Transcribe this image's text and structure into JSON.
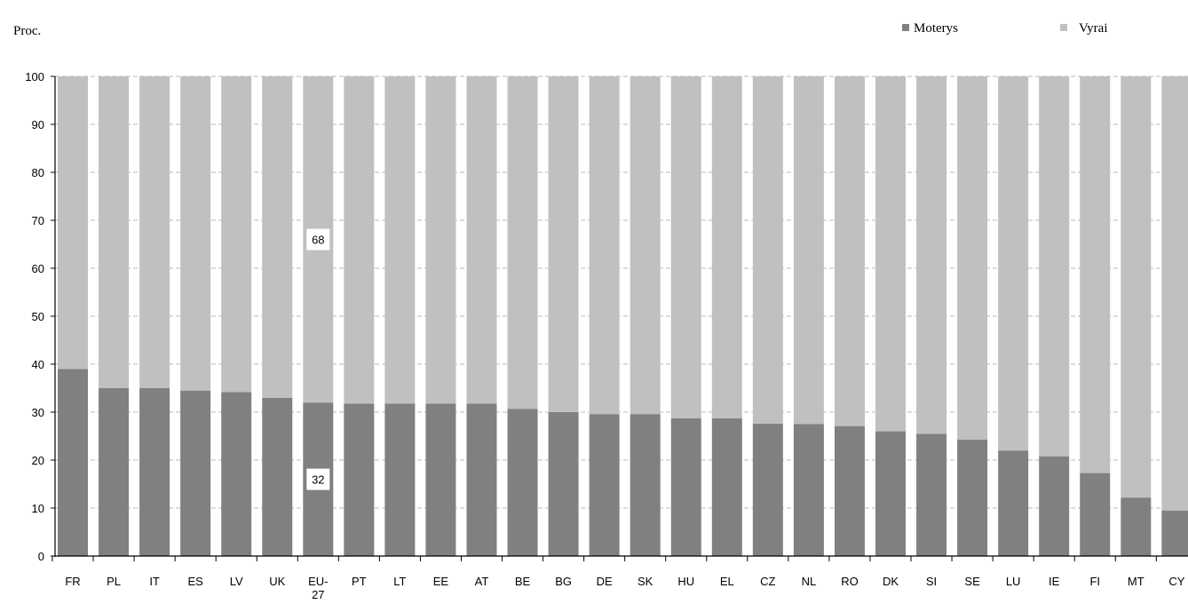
{
  "chart_data": {
    "type": "bar",
    "stacked": true,
    "ylabel": "Proc.",
    "ylim": [
      0,
      100
    ],
    "yticks": [
      0,
      10,
      20,
      30,
      40,
      50,
      60,
      70,
      80,
      90,
      100
    ],
    "grid": true,
    "legend_position": "top-right",
    "categories": [
      "FR",
      "PL",
      "IT",
      "ES",
      "LV",
      "UK",
      "EU-27",
      "PT",
      "LT",
      "EE",
      "AT",
      "BE",
      "BG",
      "DE",
      "SK",
      "HU",
      "EL",
      "CZ",
      "NL",
      "RO",
      "DK",
      "SI",
      "SE",
      "LU",
      "IE",
      "FI",
      "MT",
      "CY"
    ],
    "series": [
      {
        "name": "Moterys",
        "color": "#808080",
        "values": [
          39,
          35,
          35,
          34.5,
          34.2,
          33,
          32,
          31.8,
          31.8,
          31.8,
          31.8,
          30.7,
          30,
          29.6,
          29.6,
          28.7,
          28.7,
          27.6,
          27.5,
          27.1,
          26,
          25.5,
          24.3,
          22,
          20.8,
          17.3,
          12.2,
          9.5
        ]
      },
      {
        "name": "Vyrai",
        "color": "#c0c0c0",
        "values": [
          61,
          65,
          65,
          65.5,
          65.8,
          67,
          68,
          68.2,
          68.2,
          68.2,
          68.2,
          69.3,
          70,
          70.4,
          70.4,
          71.3,
          71.3,
          72.4,
          72.5,
          72.9,
          74,
          74.5,
          75.7,
          78,
          79.2,
          82.7,
          87.8,
          90.5
        ]
      }
    ],
    "annotations": [
      {
        "category": "EU-27",
        "series": "Moterys",
        "text": "32"
      },
      {
        "category": "EU-27",
        "series": "Vyrai",
        "text": "68"
      }
    ]
  }
}
